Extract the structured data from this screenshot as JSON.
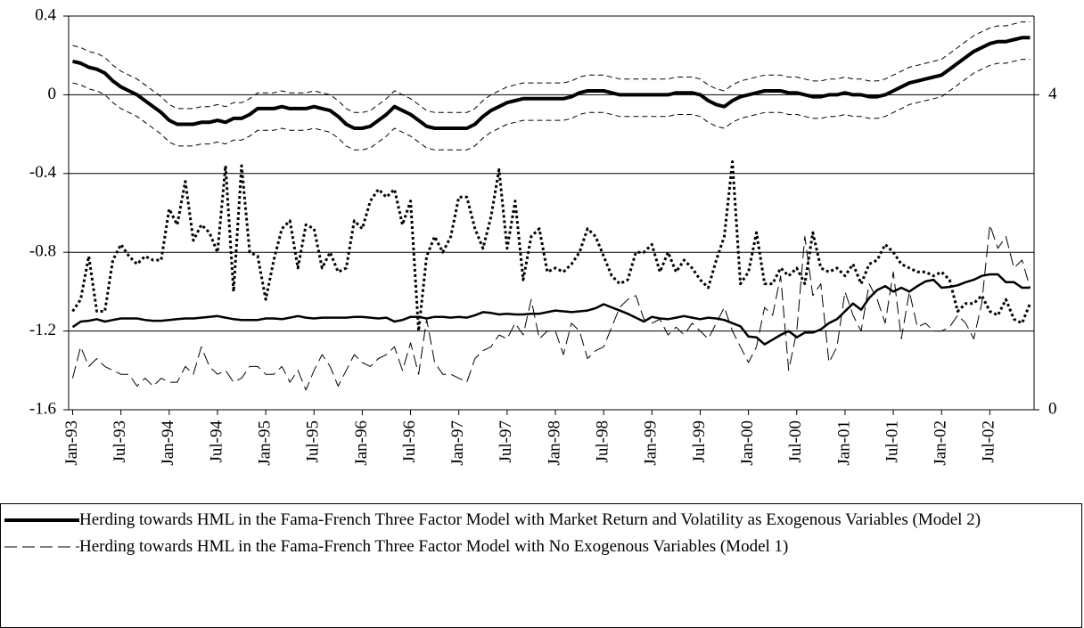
{
  "chart_data": {
    "type": "line",
    "categories": [
      "Jan-93",
      null,
      null,
      null,
      null,
      null,
      "Jul-93",
      null,
      null,
      null,
      null,
      null,
      "Jan-94",
      null,
      null,
      null,
      null,
      null,
      "Jul-94",
      null,
      null,
      null,
      null,
      null,
      "Jan-95",
      null,
      null,
      null,
      null,
      null,
      "Jul-95",
      null,
      null,
      null,
      null,
      null,
      "Jan-96",
      null,
      null,
      null,
      null,
      null,
      "Jul-96",
      null,
      null,
      null,
      null,
      null,
      "Jan-97",
      null,
      null,
      null,
      null,
      null,
      "Jul-97",
      null,
      null,
      null,
      null,
      null,
      "Jan-98",
      null,
      null,
      null,
      null,
      null,
      "Jul-98",
      null,
      null,
      null,
      null,
      null,
      "Jan-99",
      null,
      null,
      null,
      null,
      null,
      "Jul-99",
      null,
      null,
      null,
      null,
      null,
      "Jan-00",
      null,
      null,
      null,
      null,
      null,
      "Jul-00",
      null,
      null,
      null,
      null,
      null,
      "Jan-01",
      null,
      null,
      null,
      null,
      null,
      "Jul-01",
      null,
      null,
      null,
      null,
      null,
      "Jan-02",
      null,
      null,
      null,
      null,
      null,
      "Jul-02",
      null,
      null,
      null,
      null,
      null
    ],
    "ylim": [
      -1.6,
      0.4
    ],
    "yticks": [
      -1.6,
      -1.2,
      -0.8,
      -0.4,
      0,
      0.4
    ],
    "grid": true,
    "y2lim": [
      0,
      5
    ],
    "y2ticks": [
      0,
      4
    ],
    "series": [
      {
        "name": "Herding towards HML in the Fama-French Three Factor Model with Market Return and Volatility as Exogenous Variables (Model 2)",
        "color": "#000000",
        "style": "solid",
        "width": 4,
        "values": [
          0.17,
          0.16,
          0.14,
          0.13,
          0.11,
          0.07,
          0.04,
          0.02,
          0.0,
          -0.03,
          -0.06,
          -0.09,
          -0.13,
          -0.15,
          -0.15,
          -0.15,
          -0.14,
          -0.14,
          -0.13,
          -0.14,
          -0.12,
          -0.12,
          -0.1,
          -0.07,
          -0.07,
          -0.07,
          -0.06,
          -0.07,
          -0.07,
          -0.07,
          -0.06,
          -0.07,
          -0.08,
          -0.11,
          -0.15,
          -0.17,
          -0.17,
          -0.16,
          -0.13,
          -0.1,
          -0.06,
          -0.08,
          -0.1,
          -0.13,
          -0.16,
          -0.17,
          -0.17,
          -0.17,
          -0.17,
          -0.17,
          -0.15,
          -0.11,
          -0.08,
          -0.06,
          -0.04,
          -0.03,
          -0.02,
          -0.02,
          -0.02,
          -0.02,
          -0.02,
          -0.02,
          -0.01,
          0.01,
          0.02,
          0.02,
          0.02,
          0.01,
          0.0,
          0.0,
          0.0,
          0.0,
          0.0,
          0.0,
          0.0,
          0.01,
          0.01,
          0.01,
          0.0,
          -0.03,
          -0.05,
          -0.06,
          -0.03,
          -0.01,
          0.0,
          0.01,
          0.02,
          0.02,
          0.02,
          0.01,
          0.01,
          0.0,
          -0.01,
          -0.01,
          0.0,
          0.0,
          0.01,
          0.0,
          0.0,
          -0.01,
          -0.01,
          0.0,
          0.02,
          0.04,
          0.06,
          0.07,
          0.08,
          0.09,
          0.1,
          0.13,
          0.16,
          0.19,
          0.22,
          0.24,
          0.26,
          0.27,
          0.27,
          0.28,
          0.29,
          0.29
        ]
      },
      {
        "color": "#000000",
        "style": "shortdash",
        "width": 1,
        "values": [
          0.25,
          0.24,
          0.22,
          0.21,
          0.19,
          0.15,
          0.12,
          0.1,
          0.08,
          0.05,
          0.02,
          -0.01,
          -0.05,
          -0.07,
          -0.07,
          -0.07,
          -0.06,
          -0.06,
          -0.05,
          -0.06,
          -0.04,
          -0.04,
          -0.02,
          0.01,
          0.01,
          0.01,
          0.02,
          0.01,
          0.01,
          0.01,
          0.02,
          0.01,
          0.0,
          -0.03,
          -0.07,
          -0.09,
          -0.09,
          -0.08,
          -0.05,
          -0.02,
          0.02,
          0.0,
          -0.02,
          -0.05,
          -0.08,
          -0.09,
          -0.09,
          -0.09,
          -0.09,
          -0.09,
          -0.07,
          -0.03,
          0.0,
          0.02,
          0.04,
          0.05,
          0.06,
          0.06,
          0.06,
          0.06,
          0.06,
          0.06,
          0.07,
          0.09,
          0.1,
          0.1,
          0.1,
          0.09,
          0.08,
          0.08,
          0.08,
          0.08,
          0.08,
          0.08,
          0.08,
          0.09,
          0.09,
          0.09,
          0.08,
          0.05,
          0.03,
          0.02,
          0.05,
          0.07,
          0.08,
          0.09,
          0.1,
          0.1,
          0.1,
          0.09,
          0.09,
          0.08,
          0.07,
          0.07,
          0.08,
          0.08,
          0.09,
          0.08,
          0.08,
          0.07,
          0.07,
          0.08,
          0.1,
          0.12,
          0.14,
          0.15,
          0.16,
          0.17,
          0.18,
          0.21,
          0.24,
          0.27,
          0.3,
          0.32,
          0.34,
          0.35,
          0.35,
          0.36,
          0.37,
          0.37
        ]
      },
      {
        "color": "#000000",
        "style": "shortdash",
        "width": 1,
        "values": [
          0.06,
          0.05,
          0.03,
          0.02,
          0.0,
          -0.04,
          -0.07,
          -0.09,
          -0.11,
          -0.14,
          -0.17,
          -0.2,
          -0.24,
          -0.26,
          -0.26,
          -0.26,
          -0.25,
          -0.25,
          -0.24,
          -0.25,
          -0.23,
          -0.23,
          -0.21,
          -0.18,
          -0.18,
          -0.18,
          -0.17,
          -0.18,
          -0.18,
          -0.18,
          -0.17,
          -0.18,
          -0.19,
          -0.22,
          -0.26,
          -0.28,
          -0.28,
          -0.27,
          -0.24,
          -0.21,
          -0.17,
          -0.19,
          -0.21,
          -0.24,
          -0.27,
          -0.28,
          -0.28,
          -0.28,
          -0.28,
          -0.28,
          -0.26,
          -0.22,
          -0.19,
          -0.17,
          -0.15,
          -0.14,
          -0.13,
          -0.13,
          -0.13,
          -0.13,
          -0.13,
          -0.13,
          -0.12,
          -0.1,
          -0.09,
          -0.09,
          -0.09,
          -0.1,
          -0.11,
          -0.11,
          -0.11,
          -0.11,
          -0.11,
          -0.11,
          -0.11,
          -0.1,
          -0.1,
          -0.1,
          -0.11,
          -0.14,
          -0.16,
          -0.17,
          -0.14,
          -0.12,
          -0.11,
          -0.1,
          -0.09,
          -0.09,
          -0.09,
          -0.1,
          -0.1,
          -0.11,
          -0.12,
          -0.12,
          -0.11,
          -0.11,
          -0.1,
          -0.11,
          -0.11,
          -0.12,
          -0.12,
          -0.11,
          -0.09,
          -0.07,
          -0.05,
          -0.04,
          -0.03,
          -0.02,
          -0.01,
          0.02,
          0.05,
          0.08,
          0.11,
          0.13,
          0.15,
          0.16,
          0.16,
          0.17,
          0.18,
          0.18
        ]
      },
      {
        "color": "#000000",
        "style": "dotted",
        "width": 3,
        "axis": "y2",
        "values": [
          1.25,
          1.4,
          1.95,
          1.25,
          1.25,
          1.9,
          2.1,
          1.95,
          1.85,
          1.95,
          1.9,
          1.9,
          2.55,
          2.35,
          2.9,
          2.15,
          2.35,
          2.25,
          2.0,
          3.1,
          1.5,
          3.1,
          2.0,
          1.95,
          1.4,
          1.9,
          2.3,
          2.4,
          1.8,
          2.35,
          2.3,
          1.8,
          2.0,
          1.75,
          1.8,
          2.4,
          2.3,
          2.65,
          2.8,
          2.7,
          2.8,
          2.35,
          2.65,
          1.0,
          1.95,
          2.2,
          2.0,
          2.2,
          2.7,
          2.7,
          2.3,
          2.05,
          2.45,
          3.05,
          2.05,
          2.65,
          1.65,
          2.2,
          2.3,
          1.75,
          1.8,
          1.75,
          1.85,
          2.0,
          2.3,
          2.2,
          1.95,
          1.7,
          1.6,
          1.65,
          2.0,
          2.0,
          2.1,
          1.75,
          2.0,
          1.75,
          1.9,
          1.8,
          1.65,
          1.55,
          1.9,
          2.2,
          3.15,
          1.6,
          1.75,
          2.25,
          1.6,
          1.6,
          1.8,
          1.7,
          1.8,
          1.6,
          2.25,
          1.8,
          1.75,
          1.8,
          1.7,
          1.85,
          1.6,
          1.85,
          1.9,
          2.1,
          2.0,
          1.85,
          1.8,
          1.75,
          1.75,
          1.7,
          1.75,
          1.65,
          1.25,
          1.35,
          1.35,
          1.45,
          1.25,
          1.2,
          1.4,
          1.15,
          1.1,
          1.35
        ]
      },
      {
        "color": "#000000",
        "style": "solid",
        "width": 2.5,
        "axis": "y2",
        "values": [
          1.05,
          1.12,
          1.13,
          1.15,
          1.12,
          1.14,
          1.16,
          1.16,
          1.16,
          1.14,
          1.13,
          1.13,
          1.14,
          1.15,
          1.16,
          1.16,
          1.17,
          1.18,
          1.19,
          1.17,
          1.15,
          1.14,
          1.14,
          1.14,
          1.16,
          1.16,
          1.15,
          1.17,
          1.19,
          1.17,
          1.16,
          1.17,
          1.17,
          1.17,
          1.17,
          1.18,
          1.18,
          1.17,
          1.16,
          1.17,
          1.12,
          1.14,
          1.18,
          1.18,
          1.16,
          1.18,
          1.18,
          1.17,
          1.18,
          1.17,
          1.2,
          1.24,
          1.23,
          1.21,
          1.22,
          1.21,
          1.21,
          1.22,
          1.22,
          1.24,
          1.26,
          1.25,
          1.24,
          1.25,
          1.26,
          1.29,
          1.34,
          1.3,
          1.26,
          1.22,
          1.17,
          1.12,
          1.18,
          1.16,
          1.15,
          1.17,
          1.19,
          1.17,
          1.15,
          1.17,
          1.16,
          1.14,
          1.1,
          1.06,
          0.93,
          0.92,
          0.83,
          0.89,
          0.95,
          1.0,
          0.92,
          0.98,
          0.98,
          1.02,
          1.1,
          1.15,
          1.25,
          1.35,
          1.27,
          1.42,
          1.52,
          1.57,
          1.5,
          1.55,
          1.5,
          1.57,
          1.63,
          1.65,
          1.55,
          1.56,
          1.58,
          1.62,
          1.65,
          1.7,
          1.72,
          1.72,
          1.62,
          1.62,
          1.55,
          1.55
        ]
      },
      {
        "name": "Herding towards HML in the Fama-French Three Factor Model with No Exogenous Variables (Model 1)",
        "color": "#000000",
        "style": "longdash",
        "width": 1,
        "axis": "y2",
        "values": [
          0.4,
          0.8,
          0.55,
          0.65,
          0.55,
          0.5,
          0.45,
          0.45,
          0.3,
          0.4,
          0.3,
          0.4,
          0.35,
          0.35,
          0.55,
          0.45,
          0.8,
          0.55,
          0.45,
          0.5,
          0.35,
          0.4,
          0.55,
          0.55,
          0.45,
          0.45,
          0.55,
          0.35,
          0.5,
          0.25,
          0.5,
          0.7,
          0.55,
          0.3,
          0.5,
          0.7,
          0.6,
          0.55,
          0.65,
          0.7,
          0.8,
          0.5,
          0.85,
          0.45,
          1.15,
          0.6,
          0.45,
          0.45,
          0.4,
          0.35,
          0.65,
          0.75,
          0.8,
          0.95,
          0.9,
          1.1,
          0.95,
          1.4,
          0.9,
          1.0,
          1.0,
          0.7,
          1.1,
          1.0,
          0.65,
          0.75,
          0.8,
          1.05,
          1.3,
          1.4,
          1.45,
          1.15,
          1.1,
          1.15,
          0.95,
          1.05,
          0.95,
          1.1,
          1.0,
          0.9,
          1.1,
          1.3,
          1.0,
          0.8,
          0.6,
          0.8,
          1.3,
          1.2,
          1.7,
          0.5,
          1.0,
          2.2,
          1.45,
          1.6,
          0.6,
          0.8,
          1.5,
          1.2,
          1.0,
          1.6,
          1.4,
          1.1,
          1.75,
          0.9,
          1.5,
          1.05,
          1.1,
          1.0,
          1.0,
          1.05,
          1.2,
          1.1,
          0.9,
          1.35,
          2.35,
          2.05,
          2.2,
          1.8,
          1.9,
          1.55
        ]
      }
    ]
  }
}
